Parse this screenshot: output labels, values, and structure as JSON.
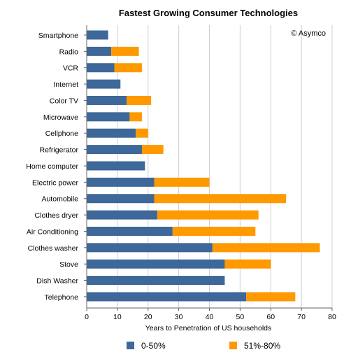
{
  "chart_data": {
    "type": "bar",
    "orientation": "horizontal",
    "stacked": true,
    "title": "Fastest Growing Consumer Technologies",
    "credit": "© Asymco",
    "xlabel": "Years to Penetration of US households",
    "ylabel": "",
    "xlim": [
      0,
      80
    ],
    "xticks": [
      0,
      10,
      20,
      30,
      40,
      50,
      60,
      70,
      80
    ],
    "grid": true,
    "legend_position": "bottom",
    "categories": [
      "Smartphone",
      "Radio",
      "VCR",
      "Internet",
      "Color TV",
      "Microwave",
      "Cellphone",
      "Refrigerator",
      "Home computer",
      "Electric power",
      "Automobile",
      "Clothes dryer",
      "Air Conditioning",
      "Clothes washer",
      "Stove",
      "Dish Washer",
      "Telephone"
    ],
    "series": [
      {
        "name": "0-50%",
        "color": "#3d6899",
        "values": [
          7,
          8,
          9,
          11,
          13,
          14,
          16,
          18,
          19,
          22,
          22,
          23,
          28,
          41,
          45,
          45,
          52
        ]
      },
      {
        "name": "51%-80%",
        "color": "#ff9900",
        "values": [
          0,
          9,
          9,
          0,
          8,
          4,
          4,
          7,
          0,
          18,
          43,
          33,
          27,
          35,
          15,
          0,
          16
        ]
      }
    ]
  }
}
